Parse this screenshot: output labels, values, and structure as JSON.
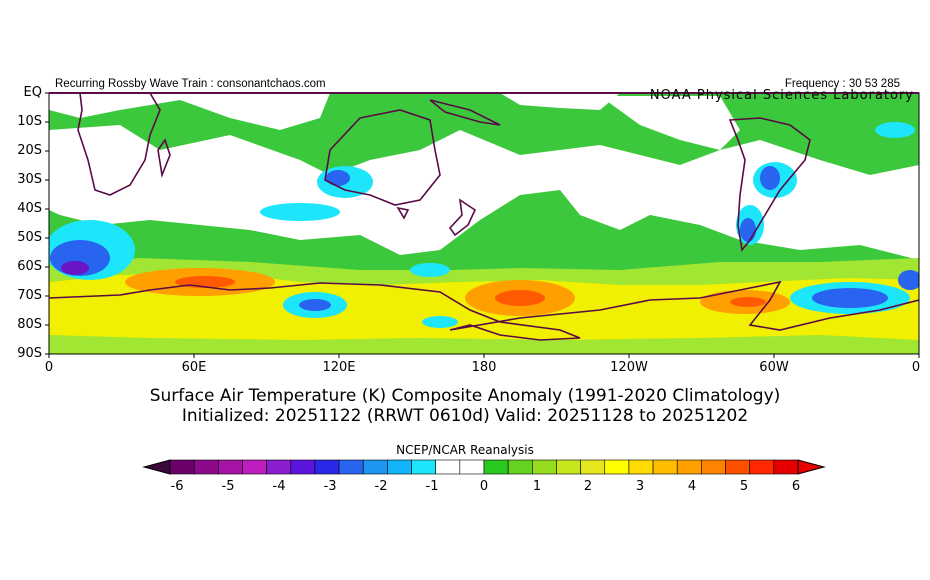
{
  "header": {
    "left": "Recurring Rossby Wave Train : consonantchaos.com",
    "right": "Frequency : 30 53 285",
    "lab": "NOAA Physical Sciences Laboratory"
  },
  "axes": {
    "lat_labels": [
      "EQ",
      "10S",
      "20S",
      "30S",
      "40S",
      "50S",
      "60S",
      "70S",
      "80S",
      "90S"
    ],
    "lon_labels": [
      "0",
      "60E",
      "120E",
      "180",
      "120W",
      "60W",
      "0"
    ]
  },
  "title": {
    "line1": "Surface Air Temperature (K) Composite Anomaly (1991-2020 Climatology)",
    "line2": "Initialized: 20251122 (RRWT 0610d) Valid: 20251128 to 20251202"
  },
  "source": "NCEP/NCAR Reanalysis",
  "colorbar": {
    "labels": [
      "-6",
      "-5",
      "-4",
      "-3",
      "-2",
      "-1",
      "0",
      "1",
      "2",
      "3",
      "4",
      "5",
      "6"
    ],
    "colors": [
      "#6a006a",
      "#8a0a8a",
      "#a514a5",
      "#bf1ebf",
      "#8c1ed2",
      "#5a14dc",
      "#2828e6",
      "#2864f0",
      "#1e96f0",
      "#14b4fa",
      "#1ee6fa",
      "#ffffff",
      "#ffffff",
      "#28c81e",
      "#64d21e",
      "#96dc1e",
      "#c8e61e",
      "#e6e61e",
      "#ffff00",
      "#ffdc00",
      "#ffbe00",
      "#ffa000",
      "#ff8200",
      "#ff5000",
      "#ff2800",
      "#e60000"
    ]
  },
  "map_colors": {
    "green": "#3cc83c",
    "lightgreen": "#a0e632",
    "yellow": "#f0f000",
    "orange": "#ffa000",
    "red": "#ff5a00",
    "cyan": "#1ee6fa",
    "blue": "#2864f0",
    "purple": "#6a14c8",
    "land": "#5a0a46"
  }
}
